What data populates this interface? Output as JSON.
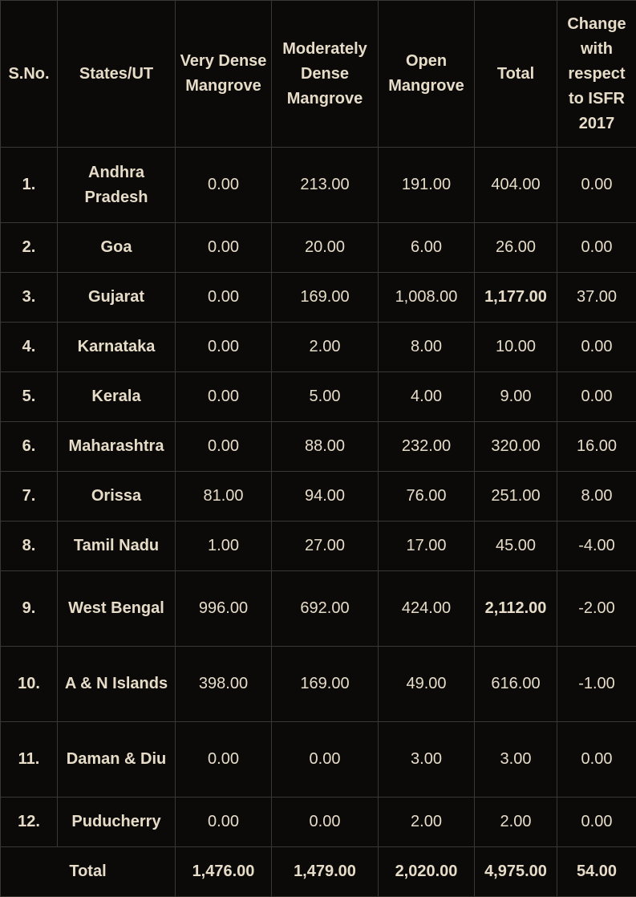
{
  "headers": {
    "sno": "S.No.",
    "state": "States/UT",
    "very_dense": "Very Dense Mangrove",
    "moderately_dense": "Moderately Dense Mangrove",
    "open": "Open Mangrove",
    "total": "Total",
    "change": "Change with respect to ISFR 2017"
  },
  "rows": [
    {
      "sno": "1.",
      "state": "Andhra Pradesh",
      "very_dense": "0.00",
      "moderately_dense": "213.00",
      "open": "191.00",
      "total": "404.00",
      "change": "0.00"
    },
    {
      "sno": "2.",
      "state": "Goa",
      "very_dense": "0.00",
      "moderately_dense": "20.00",
      "open": "6.00",
      "total": "26.00",
      "change": "0.00"
    },
    {
      "sno": "3.",
      "state": "Gujarat",
      "very_dense": "0.00",
      "moderately_dense": "169.00",
      "open": "1,008.00",
      "total": "1,177.00",
      "change": "37.00"
    },
    {
      "sno": "4.",
      "state": "Karnataka",
      "very_dense": "0.00",
      "moderately_dense": "2.00",
      "open": "8.00",
      "total": "10.00",
      "change": "0.00"
    },
    {
      "sno": "5.",
      "state": "Kerala",
      "very_dense": "0.00",
      "moderately_dense": "5.00",
      "open": "4.00",
      "total": "9.00",
      "change": "0.00"
    },
    {
      "sno": "6.",
      "state": "Maharashtra",
      "very_dense": "0.00",
      "moderately_dense": "88.00",
      "open": "232.00",
      "total": "320.00",
      "change": "16.00"
    },
    {
      "sno": "7.",
      "state": "Orissa",
      "very_dense": "81.00",
      "moderately_dense": "94.00",
      "open": "76.00",
      "total": "251.00",
      "change": "8.00"
    },
    {
      "sno": "8.",
      "state": "Tamil Nadu",
      "very_dense": "1.00",
      "moderately_dense": "27.00",
      "open": "17.00",
      "total": "45.00",
      "change": "-4.00"
    },
    {
      "sno": "9.",
      "state": "West Bengal",
      "very_dense": "996.00",
      "moderately_dense": "692.00",
      "open": "424.00",
      "total": "2,112.00",
      "change": "-2.00"
    },
    {
      "sno": "10.",
      "state": "A & N Islands",
      "very_dense": "398.00",
      "moderately_dense": "169.00",
      "open": "49.00",
      "total": "616.00",
      "change": "-1.00"
    },
    {
      "sno": "11.",
      "state": "Daman & Diu",
      "very_dense": "0.00",
      "moderately_dense": "0.00",
      "open": "3.00",
      "total": "3.00",
      "change": "0.00"
    },
    {
      "sno": "12.",
      "state": "Puducherry",
      "very_dense": "0.00",
      "moderately_dense": "0.00",
      "open": "2.00",
      "total": "2.00",
      "change": "0.00"
    }
  ],
  "total_row": {
    "label": "Total",
    "very_dense": "1,476.00",
    "moderately_dense": "1,479.00",
    "open": "2,020.00",
    "total": "4,975.00",
    "change": "54.00"
  },
  "colors": {
    "background": "#0b0a09",
    "text": "#e6dcc8",
    "border": "#3a3833"
  }
}
